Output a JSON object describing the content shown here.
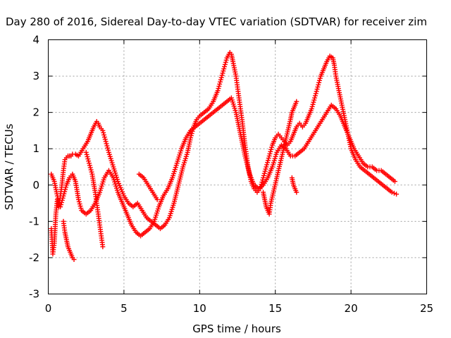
{
  "chart_data": {
    "type": "scatter",
    "title": "Day 280 of 2016, Sidereal Day-to-day VTEC variation (SDTVAR) for receiver zim",
    "xlabel": "GPS time / hours",
    "ylabel": "SDTVAR / TECUs",
    "xlim": [
      0,
      25
    ],
    "ylim": [
      -3,
      4
    ],
    "x_ticks": [
      "0",
      "5",
      "10",
      "15",
      "20",
      "25"
    ],
    "y_ticks": [
      "-3",
      "-2",
      "-1",
      "0",
      "1",
      "2",
      "3",
      "4"
    ],
    "grid": true,
    "legend": "none",
    "marker": "plus",
    "color": "#ff0000",
    "series": [
      {
        "x": [
          0.2,
          0.3,
          0.4,
          0.5,
          0.6,
          0.7,
          0.8,
          0.9,
          1.0,
          1.1,
          1.2,
          1.3,
          1.4,
          1.5,
          1.6,
          1.8,
          2.0,
          2.3,
          2.6,
          2.8,
          3.0,
          3.2,
          3.3,
          3.4,
          3.6,
          3.8,
          4.0,
          4.3,
          4.6,
          5.0,
          5.3,
          5.6,
          5.9,
          6.2,
          6.5,
          6.8,
          7.1,
          7.4,
          7.7,
          8.0,
          8.3,
          8.6,
          8.9,
          9.2,
          9.4,
          9.6,
          9.8,
          10.0,
          10.3,
          10.6,
          10.9,
          11.2,
          11.4,
          11.6,
          11.8,
          12.0,
          12.1,
          12.2,
          12.4,
          12.6,
          12.8,
          13.0,
          13.2,
          13.4,
          13.6,
          13.8,
          14.0,
          14.2,
          14.4,
          14.6,
          14.8,
          15.0,
          15.2,
          15.4,
          15.6,
          15.8,
          16.0,
          16.2,
          16.4,
          16.6,
          16.8,
          17.0,
          17.2,
          17.4,
          17.6,
          17.8,
          18.0,
          18.2,
          18.4,
          18.6,
          18.8,
          18.9,
          19.0,
          19.2,
          19.4,
          19.6,
          19.8,
          20.0,
          20.3,
          20.6,
          20.9,
          21.2,
          21.5,
          21.8,
          22.1,
          22.4,
          22.7,
          23.0
        ],
        "y": [
          -1.2,
          -1.9,
          -1.6,
          -0.8,
          -0.4,
          -0.6,
          -0.3,
          0.0,
          0.4,
          0.7,
          0.75,
          0.8,
          0.8,
          0.8,
          0.85,
          0.85,
          0.8,
          1.0,
          1.2,
          1.4,
          1.6,
          1.75,
          1.7,
          1.6,
          1.5,
          1.2,
          0.9,
          0.5,
          0.1,
          -0.3,
          -0.5,
          -0.6,
          -0.5,
          -0.7,
          -0.9,
          -1.0,
          -1.1,
          -1.2,
          -1.1,
          -0.9,
          -0.5,
          0.0,
          0.5,
          0.9,
          1.3,
          1.6,
          1.8,
          1.9,
          2.0,
          2.1,
          2.3,
          2.6,
          2.9,
          3.2,
          3.5,
          3.65,
          3.6,
          3.4,
          3.0,
          2.4,
          1.8,
          1.1,
          0.5,
          0.1,
          -0.1,
          -0.2,
          -0.1,
          0.2,
          0.5,
          0.8,
          1.1,
          1.3,
          1.4,
          1.3,
          1.2,
          1.1,
          1.2,
          1.4,
          1.6,
          1.7,
          1.6,
          1.7,
          1.9,
          2.1,
          2.4,
          2.7,
          3.0,
          3.2,
          3.4,
          3.55,
          3.5,
          3.3,
          3.0,
          2.6,
          2.2,
          1.8,
          1.4,
          1.0,
          0.7,
          0.5,
          0.4,
          0.3,
          0.2,
          0.1,
          0.0,
          -0.1,
          -0.2,
          -0.25
        ]
      },
      {
        "x": [
          0.2,
          0.4,
          0.6,
          0.8,
          1.0,
          1.2,
          1.4,
          1.6,
          1.8,
          2.0,
          2.2,
          2.5,
          2.8,
          3.1,
          3.4,
          3.7,
          4.0,
          4.3,
          4.6,
          4.9,
          5.2,
          5.5,
          5.8,
          6.1,
          6.4,
          6.7,
          7.0,
          7.3,
          7.6,
          7.9,
          8.2,
          8.5,
          8.8,
          9.1,
          9.4,
          9.7,
          10.0,
          10.3,
          10.6,
          10.9,
          11.2,
          11.5,
          11.8,
          12.1,
          12.4,
          12.7,
          13.0,
          13.3,
          13.6,
          13.9,
          14.2,
          14.5,
          14.8,
          15.1,
          15.4,
          15.7,
          16.0,
          16.3,
          16.6,
          16.9,
          17.2,
          17.5,
          17.8,
          18.1,
          18.4,
          18.7,
          19.0,
          19.3,
          19.6,
          19.9,
          20.2,
          20.5,
          20.8,
          21.1,
          21.4,
          21.7,
          22.0,
          22.3,
          22.6,
          22.9
        ],
        "y": [
          0.3,
          0.1,
          -0.3,
          -0.6,
          -0.3,
          0.0,
          0.2,
          0.3,
          0.1,
          -0.4,
          -0.7,
          -0.8,
          -0.7,
          -0.5,
          -0.2,
          0.2,
          0.4,
          0.2,
          -0.2,
          -0.5,
          -0.8,
          -1.1,
          -1.3,
          -1.4,
          -1.3,
          -1.2,
          -1.0,
          -0.6,
          -0.3,
          -0.1,
          0.2,
          0.6,
          1.0,
          1.3,
          1.5,
          1.6,
          1.7,
          1.8,
          1.9,
          2.0,
          2.1,
          2.2,
          2.3,
          2.4,
          2.0,
          1.4,
          0.8,
          0.3,
          0.0,
          -0.1,
          0.0,
          0.2,
          0.5,
          0.9,
          1.1,
          1.0,
          0.8,
          0.8,
          0.9,
          1.0,
          1.2,
          1.4,
          1.6,
          1.8,
          2.0,
          2.2,
          2.1,
          1.9,
          1.6,
          1.3,
          1.0,
          0.8,
          0.6,
          0.5,
          0.5,
          0.4,
          0.4,
          0.3,
          0.2,
          0.1
        ]
      },
      {
        "x": [
          1.0,
          1.1,
          1.2,
          1.3,
          1.4,
          1.5,
          1.6,
          1.7
        ],
        "y": [
          -1.0,
          -1.3,
          -1.5,
          -1.7,
          -1.8,
          -1.9,
          -2.0,
          -2.05
        ]
      },
      {
        "x": [
          2.5,
          2.7,
          2.9,
          3.1,
          3.3,
          3.5,
          3.6
        ],
        "y": [
          0.9,
          0.6,
          0.3,
          -0.2,
          -0.8,
          -1.4,
          -1.7
        ]
      },
      {
        "x": [
          14.2,
          14.3,
          14.4,
          14.5,
          14.6,
          14.7,
          16.0,
          16.1,
          16.2,
          16.3,
          16.4
        ],
        "y": [
          -0.2,
          -0.4,
          -0.6,
          -0.7,
          -0.8,
          -0.5,
          1.8,
          2.0,
          2.1,
          2.2,
          2.3
        ]
      },
      {
        "x": [
          16.1,
          16.2,
          16.3,
          16.4
        ],
        "y": [
          0.2,
          0.0,
          -0.1,
          -0.2
        ]
      },
      {
        "x": [
          6.0,
          6.3,
          6.6,
          6.9,
          7.2
        ],
        "y": [
          0.3,
          0.2,
          0.0,
          -0.2,
          -0.4
        ]
      }
    ]
  }
}
